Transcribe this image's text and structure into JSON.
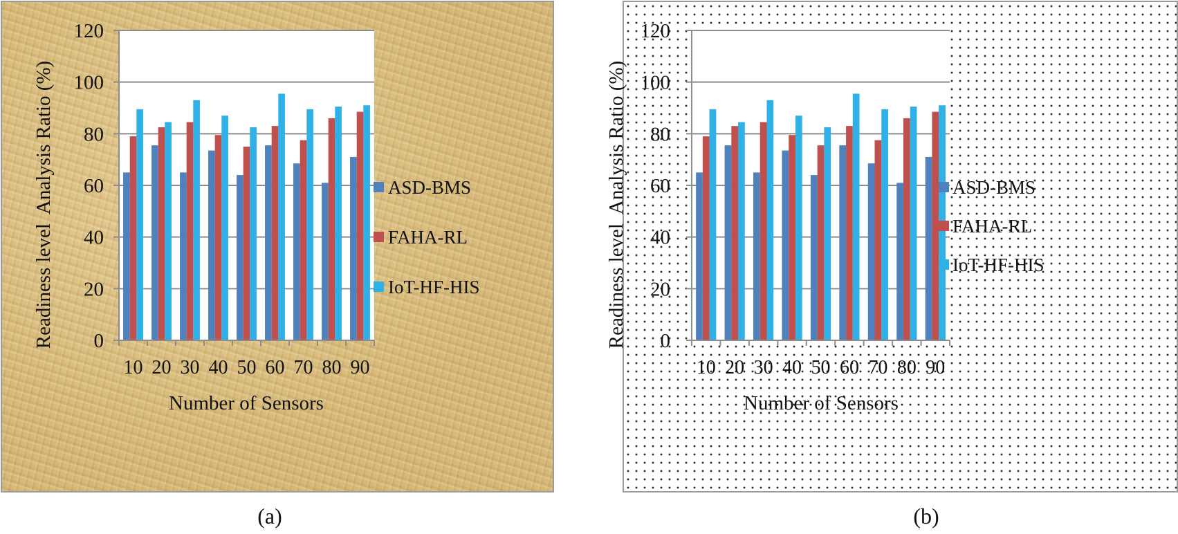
{
  "chart_data": [
    {
      "type": "bar",
      "caption": "(a)",
      "xlabel": "Number of Sensors",
      "ylabel": "Readiness level  Analysis Ratio (%)",
      "ylim": [
        0,
        120
      ],
      "yticks": [
        0,
        20,
        40,
        60,
        80,
        100,
        120
      ],
      "categories": [
        "10",
        "20",
        "30",
        "40",
        "50",
        "60",
        "70",
        "80",
        "90"
      ],
      "series": [
        {
          "name": "ASD-BMS",
          "color": "#4f81bd",
          "values": [
            65,
            75.5,
            65,
            73.5,
            64,
            75.5,
            68.5,
            61,
            71
          ]
        },
        {
          "name": "FAHA-RL",
          "color": "#c0504d",
          "values": [
            79,
            82.5,
            84.5,
            79.5,
            75,
            83,
            77.5,
            86,
            88.5
          ]
        },
        {
          "name": "IoT-HF-HIS",
          "color": "#2fb0e6",
          "values": [
            89.5,
            84.5,
            93,
            87,
            82.5,
            95.5,
            89.5,
            90.5,
            91
          ]
        }
      ],
      "grid": "horizontal",
      "legend_position": "right"
    },
    {
      "type": "bar",
      "caption": "(b)",
      "xlabel": "Number of Sensors",
      "ylabel": "Readiness level  Analysis Ratio (%)",
      "ylim": [
        0,
        120
      ],
      "yticks": [
        0,
        20,
        40,
        60,
        80,
        100,
        120
      ],
      "categories": [
        "10",
        "20",
        "30",
        "40",
        "50",
        "60",
        "70",
        "80",
        "90"
      ],
      "series": [
        {
          "name": "ASD-BMS",
          "color": "#4f81bd",
          "values": [
            65,
            75.5,
            65,
            73.5,
            64,
            75.5,
            68.5,
            61,
            71
          ]
        },
        {
          "name": "FAHA-RL",
          "color": "#c0504d",
          "values": [
            79,
            83,
            84.5,
            79.5,
            75.5,
            83,
            77.5,
            86,
            88.5
          ]
        },
        {
          "name": "IoT-HF-HIS",
          "color": "#2fb0e6",
          "values": [
            89.5,
            84.5,
            93,
            87,
            82.5,
            95.5,
            89.5,
            90.5,
            91
          ]
        }
      ],
      "grid": "horizontal",
      "legend_position": "right"
    }
  ]
}
